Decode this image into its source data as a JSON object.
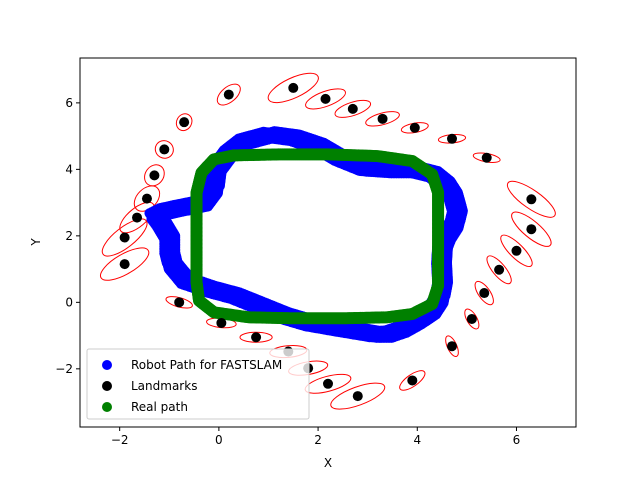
{
  "chart_data": {
    "type": "scatter",
    "xlabel": "X",
    "ylabel": "Y",
    "xlim": [
      -2.8,
      7.2
    ],
    "ylim": [
      -3.75,
      7.35
    ],
    "x_ticks": [
      -2,
      0,
      2,
      4,
      6
    ],
    "y_ticks": [
      -2,
      0,
      2,
      4,
      6
    ],
    "grid": false,
    "legend_position": "lower left",
    "colors": {
      "robot_path": "#0000ff",
      "landmarks": "#000000",
      "real_path": "#008000",
      "ellipses": "#ff0000"
    },
    "legend": [
      {
        "label": "Robot Path for FASTSLAM",
        "color": "#0000ff"
      },
      {
        "label": "Landmarks",
        "color": "#000000"
      },
      {
        "label": "Real path",
        "color": "#008000"
      }
    ],
    "landmarks": [
      [
        0.2,
        6.25
      ],
      [
        1.5,
        6.45
      ],
      [
        2.15,
        6.12
      ],
      [
        2.7,
        5.82
      ],
      [
        3.3,
        5.52
      ],
      [
        3.95,
        5.25
      ],
      [
        4.7,
        4.92
      ],
      [
        5.4,
        4.35
      ],
      [
        -0.7,
        5.42
      ],
      [
        -1.1,
        4.6
      ],
      [
        -1.3,
        3.82
      ],
      [
        -1.45,
        3.12
      ],
      [
        -1.65,
        2.55
      ],
      [
        -1.9,
        1.95
      ],
      [
        -1.9,
        1.15
      ],
      [
        6.3,
        3.1
      ],
      [
        6.3,
        2.2
      ],
      [
        6.0,
        1.55
      ],
      [
        5.65,
        0.98
      ],
      [
        5.35,
        0.28
      ],
      [
        5.1,
        -0.5
      ],
      [
        4.7,
        -1.32
      ],
      [
        -0.8,
        0.0
      ],
      [
        0.05,
        -0.62
      ],
      [
        0.75,
        -1.05
      ],
      [
        1.4,
        -1.48
      ],
      [
        1.8,
        -1.98
      ],
      [
        2.2,
        -2.45
      ],
      [
        2.8,
        -2.82
      ],
      [
        3.9,
        -2.35
      ]
    ],
    "uncertainty_ellipses": [
      {
        "center": [
          0.2,
          6.25
        ],
        "width": 0.55,
        "height": 0.45,
        "angle": 40
      },
      {
        "center": [
          1.5,
          6.45
        ],
        "width": 1.1,
        "height": 0.6,
        "angle": 25
      },
      {
        "center": [
          2.15,
          6.12
        ],
        "width": 0.85,
        "height": 0.45,
        "angle": 20
      },
      {
        "center": [
          2.7,
          5.82
        ],
        "width": 0.75,
        "height": 0.4,
        "angle": 18
      },
      {
        "center": [
          3.3,
          5.52
        ],
        "width": 0.7,
        "height": 0.35,
        "angle": 15
      },
      {
        "center": [
          3.95,
          5.25
        ],
        "width": 0.55,
        "height": 0.28,
        "angle": 10
      },
      {
        "center": [
          4.7,
          4.92
        ],
        "width": 0.55,
        "height": 0.25,
        "angle": 5
      },
      {
        "center": [
          5.4,
          4.35
        ],
        "width": 0.55,
        "height": 0.25,
        "angle": -10
      },
      {
        "center": [
          -0.7,
          5.42
        ],
        "width": 0.35,
        "height": 0.45,
        "angle": 60
      },
      {
        "center": [
          -1.1,
          4.6
        ],
        "width": 0.35,
        "height": 0.55,
        "angle": 60
      },
      {
        "center": [
          -1.3,
          3.82
        ],
        "width": 0.45,
        "height": 0.55,
        "angle": 55
      },
      {
        "center": [
          -1.45,
          3.12
        ],
        "width": 0.6,
        "height": 0.6,
        "angle": 45
      },
      {
        "center": [
          -1.65,
          2.55
        ],
        "width": 0.85,
        "height": 0.55,
        "angle": 40
      },
      {
        "center": [
          -1.9,
          1.95
        ],
        "width": 1.1,
        "height": 0.6,
        "angle": 38
      },
      {
        "center": [
          -1.9,
          1.15
        ],
        "width": 1.1,
        "height": 0.6,
        "angle": 30
      },
      {
        "center": [
          6.3,
          3.1
        ],
        "width": 1.15,
        "height": 0.55,
        "angle": -35
      },
      {
        "center": [
          6.3,
          2.2
        ],
        "width": 1.0,
        "height": 0.5,
        "angle": -40
      },
      {
        "center": [
          6.0,
          1.55
        ],
        "width": 0.85,
        "height": 0.42,
        "angle": -45
      },
      {
        "center": [
          5.65,
          0.98
        ],
        "width": 0.7,
        "height": 0.38,
        "angle": -50
      },
      {
        "center": [
          5.35,
          0.28
        ],
        "width": 0.55,
        "height": 0.35,
        "angle": -55
      },
      {
        "center": [
          5.1,
          -0.5
        ],
        "width": 0.45,
        "height": 0.3,
        "angle": -60
      },
      {
        "center": [
          4.7,
          -1.32
        ],
        "width": 0.45,
        "height": 0.28,
        "angle": -65
      },
      {
        "center": [
          -0.8,
          0.0
        ],
        "width": 0.55,
        "height": 0.28,
        "angle": -15
      },
      {
        "center": [
          0.05,
          -0.62
        ],
        "width": 0.6,
        "height": 0.28,
        "angle": -5
      },
      {
        "center": [
          0.75,
          -1.05
        ],
        "width": 0.65,
        "height": 0.3,
        "angle": 0
      },
      {
        "center": [
          1.4,
          -1.48
        ],
        "width": 0.75,
        "height": 0.35,
        "angle": 5
      },
      {
        "center": [
          1.8,
          -1.98
        ],
        "width": 0.8,
        "height": 0.38,
        "angle": 10
      },
      {
        "center": [
          2.2,
          -2.45
        ],
        "width": 0.95,
        "height": 0.45,
        "angle": 15
      },
      {
        "center": [
          2.8,
          -2.82
        ],
        "width": 1.15,
        "height": 0.55,
        "angle": 20
      },
      {
        "center": [
          3.9,
          -2.35
        ],
        "width": 0.6,
        "height": 0.35,
        "angle": 35
      }
    ],
    "real_path": [
      [
        -0.45,
        3.3
      ],
      [
        -0.45,
        2.5
      ],
      [
        -0.45,
        1.5
      ],
      [
        -0.45,
        0.6
      ],
      [
        -0.4,
        0.05
      ],
      [
        -0.1,
        -0.3
      ],
      [
        0.6,
        -0.45
      ],
      [
        1.5,
        -0.48
      ],
      [
        2.5,
        -0.48
      ],
      [
        3.4,
        -0.45
      ],
      [
        3.9,
        -0.35
      ],
      [
        4.3,
        -0.05
      ],
      [
        4.42,
        0.5
      ],
      [
        4.42,
        1.5
      ],
      [
        4.42,
        2.5
      ],
      [
        4.42,
        3.3
      ],
      [
        4.3,
        3.85
      ],
      [
        3.9,
        4.25
      ],
      [
        3.2,
        4.4
      ],
      [
        2.2,
        4.45
      ],
      [
        1.2,
        4.45
      ],
      [
        0.3,
        4.42
      ],
      [
        -0.1,
        4.3
      ],
      [
        -0.35,
        3.9
      ],
      [
        -0.45,
        3.3
      ]
    ],
    "robot_path": [
      [
        -0.1,
        3.4
      ],
      [
        -0.3,
        3.0
      ],
      [
        -0.8,
        2.85
      ],
      [
        -1.1,
        2.75
      ],
      [
        -1.3,
        2.6
      ],
      [
        -1.2,
        2.4
      ],
      [
        -1.0,
        1.9
      ],
      [
        -1.0,
        1.4
      ],
      [
        -0.95,
        1.1
      ],
      [
        -0.7,
        0.65
      ],
      [
        -0.2,
        0.4
      ],
      [
        0.3,
        0.2
      ],
      [
        0.8,
        -0.1
      ],
      [
        1.3,
        -0.4
      ],
      [
        1.8,
        -0.62
      ],
      [
        2.3,
        -0.75
      ],
      [
        2.7,
        -0.85
      ],
      [
        3.1,
        -0.95
      ],
      [
        3.4,
        -0.95
      ],
      [
        3.7,
        -0.8
      ],
      [
        4.0,
        -0.55
      ],
      [
        4.3,
        -0.25
      ],
      [
        4.45,
        0.1
      ],
      [
        4.5,
        0.5
      ],
      [
        4.48,
        1.1
      ],
      [
        4.5,
        1.6
      ],
      [
        4.6,
        2.0
      ],
      [
        4.75,
        2.35
      ],
      [
        4.8,
        2.65
      ],
      [
        4.7,
        3.2
      ],
      [
        4.55,
        3.55
      ],
      [
        4.3,
        3.85
      ],
      [
        3.9,
        4.0
      ],
      [
        3.4,
        4.0
      ],
      [
        2.9,
        4.05
      ],
      [
        2.4,
        4.35
      ],
      [
        2.0,
        4.7
      ],
      [
        1.5,
        4.95
      ],
      [
        1.0,
        5.05
      ],
      [
        0.5,
        4.85
      ],
      [
        0.2,
        4.5
      ],
      [
        -0.05,
        4.0
      ],
      [
        -0.1,
        3.4
      ]
    ],
    "robot_path_offsets": [
      [
        0,
        0
      ],
      [
        0.12,
        0.1
      ],
      [
        -0.1,
        0.08
      ],
      [
        0.08,
        -0.12
      ],
      [
        -0.06,
        -0.1
      ]
    ]
  }
}
